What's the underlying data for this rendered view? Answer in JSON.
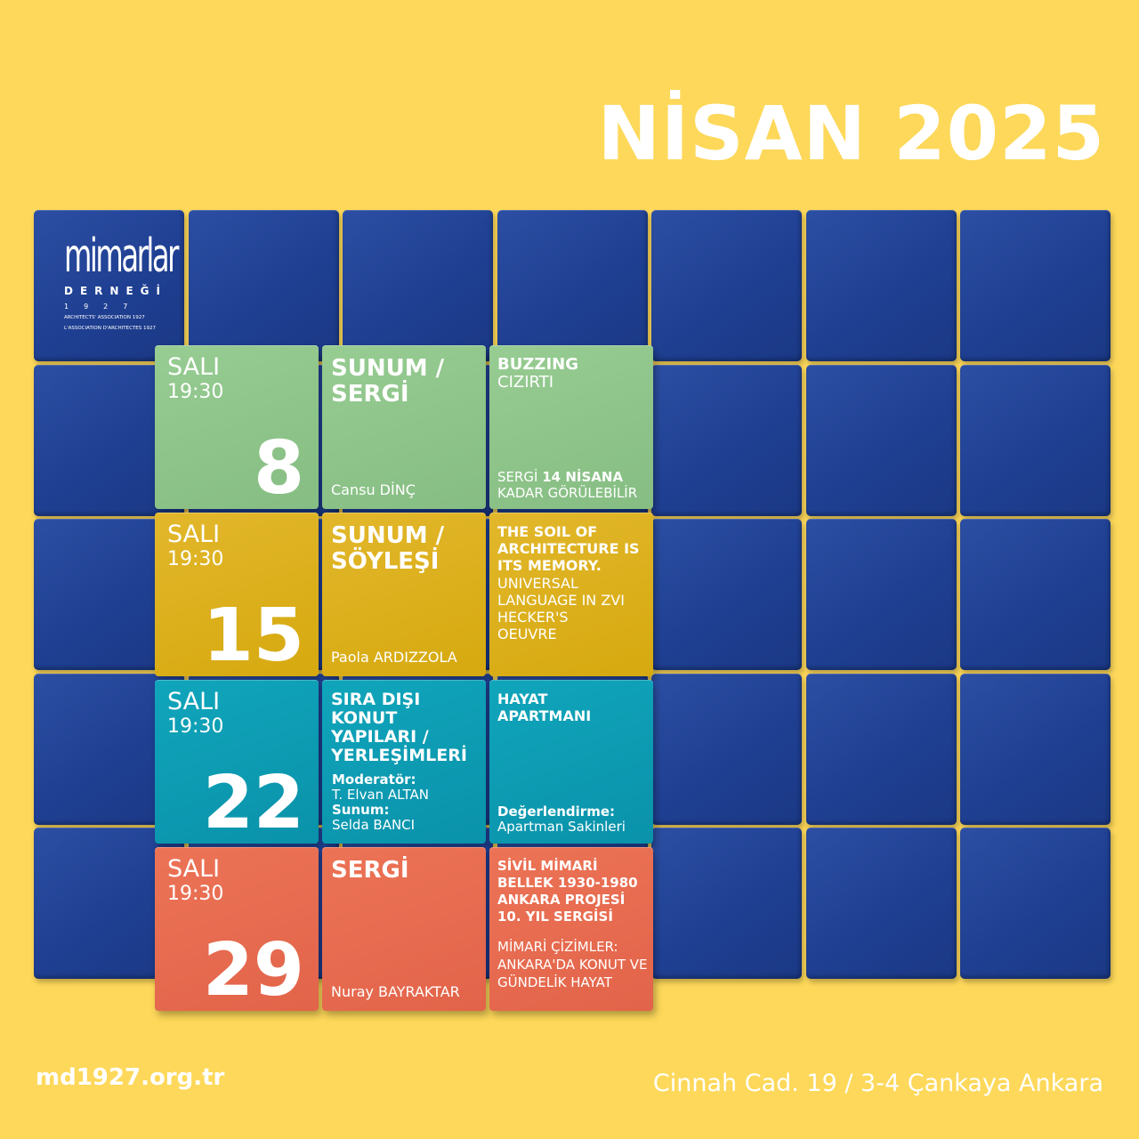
{
  "header": {
    "title": "NİSAN 2025"
  },
  "logo": {
    "word": "mimarlar",
    "sub": "DERNEĞİ",
    "year": "1927",
    "line1": "ARCHITECTS' ASSOCIATION 1927",
    "line2": "L'ASSOCIATION D'ARCHITECTES 1927"
  },
  "rows": [
    {
      "day": "SALI",
      "time": "19:30",
      "date": "8",
      "type": "SUNUM / SERGİ",
      "person": "Cansu DİNÇ",
      "event_title": "BUZZING",
      "event_subtitle": "CIZIRTI",
      "event_note_pre": "SERGİ ",
      "event_note_bold": "14 NİSANA",
      "event_note_post": "KADAR GÖRÜLEBİLİR"
    },
    {
      "day": "SALI",
      "time": "19:30",
      "date": "15",
      "type": "SUNUM / SÖYLEŞİ",
      "person": "Paola ARDIZZOLA",
      "event_title": "THE SOIL OF ARCHITECTURE IS ITS MEMORY.",
      "event_body": "UNIVERSAL LANGUAGE IN ZVI HECKER'S OEUVRE"
    },
    {
      "day": "SALI",
      "time": "19:30",
      "date": "22",
      "type": "SIRA DIŞI KONUT YAPILARI / YERLEŞİMLERİ",
      "moderator_label": "Moderatör:",
      "moderator": "T. Elvan ALTAN",
      "presenter_label": "Sunum:",
      "presenter": "Selda BANCI",
      "event_title": "HAYAT APARTMANI",
      "eval_label": "Değerlendirme:",
      "eval": "Apartman Sakinleri"
    },
    {
      "day": "SALI",
      "time": "19:30",
      "date": "29",
      "type": "SERGİ",
      "person": "Nuray BAYRAKTAR",
      "event_title": "SİVİL MİMARİ BELLEK 1930-1980 ANKARA PROJESİ 10. YIL SERGİSİ",
      "event_body": "MİMARİ ÇİZİMLER: ANKARA'DA KONUT VE GÜNDELİK HAYAT"
    }
  ],
  "footer": {
    "url": "md1927.org.tr",
    "address": "Cinnah Cad. 19 / 3-4 Çankaya Ankara"
  },
  "colors": {
    "background": "#fdd85a",
    "cube_blue": "#1f3f92",
    "green": "#8fc58b",
    "yellow": "#dcb01c",
    "teal": "#0d9cb3",
    "orange": "#e76b50"
  }
}
